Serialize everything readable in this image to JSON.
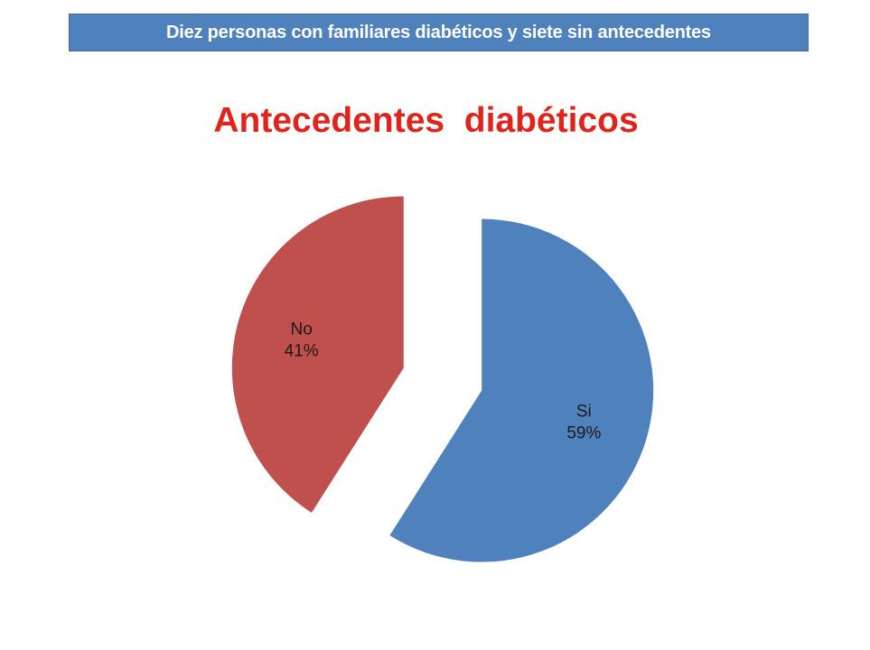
{
  "banner": {
    "text": "Diez personas con familiares diabéticos y siete sin antecedentes"
  },
  "colors": {
    "banner_bg": "#4f81bd",
    "title": "#e0241c"
  },
  "chart_data": {
    "type": "pie",
    "title": "Antecedentes  diabéticos",
    "slices": [
      {
        "label": "Si",
        "value": 59,
        "percent_label": "59%",
        "color": "#4f81bd"
      },
      {
        "label": "No",
        "value": 41,
        "percent_label": "41%",
        "color": "#c0504d"
      }
    ],
    "exploded": true,
    "legend": "none"
  }
}
